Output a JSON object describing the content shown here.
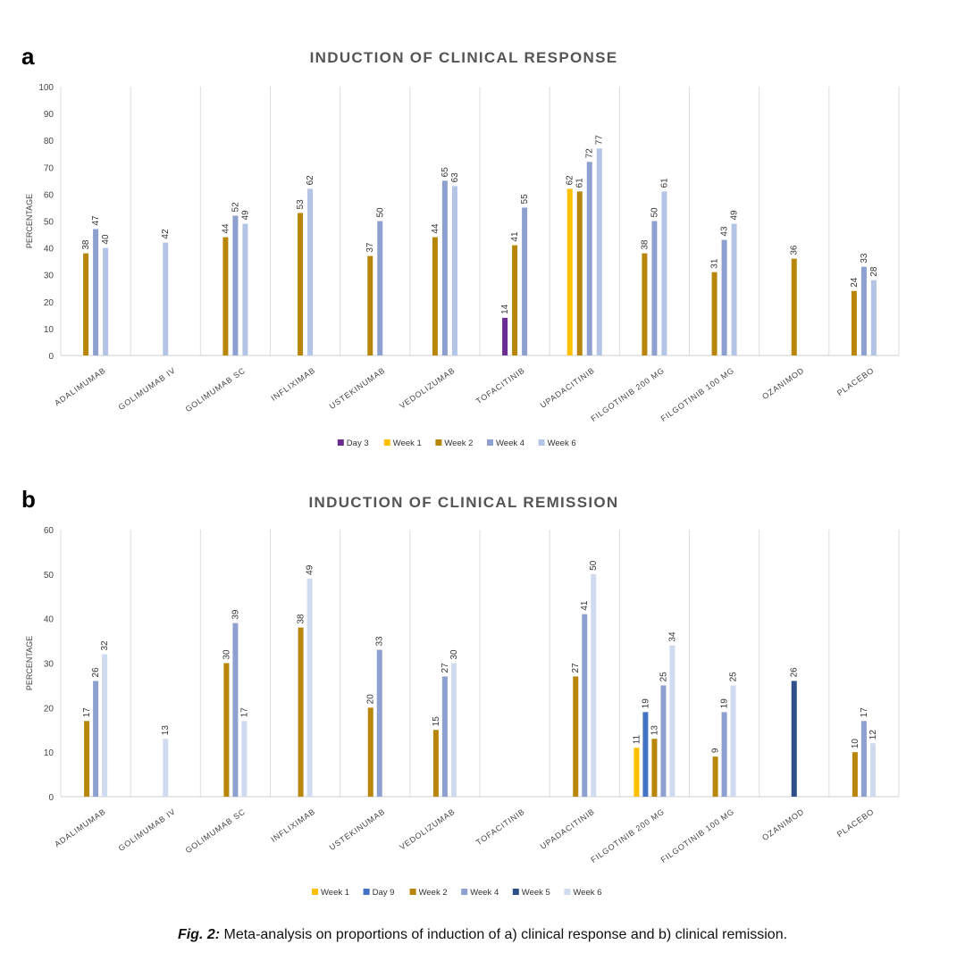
{
  "panel_letters": {
    "a": "a",
    "b": "b"
  },
  "caption": {
    "fig_label": "Fig. 2:",
    "text": " Meta-analysis on proportions of induction of a) clinical response and b) clinical remission."
  },
  "chart_data": [
    {
      "type": "bar",
      "title": "INDUCTION OF CLINICAL RESPONSE",
      "xlabel": "",
      "ylabel": "PERCENTAGE",
      "ylim": [
        0,
        100
      ],
      "yticks": [
        0,
        10,
        20,
        30,
        40,
        50,
        60,
        70,
        80,
        90,
        100
      ],
      "grid": "vertical category separators",
      "legend_position": "bottom",
      "categories": [
        "ADALIMUMAB",
        "GOLIMUMAB IV",
        "GOLIMUMAB SC",
        "INFLIXIMAB",
        "USTEKINUMAB",
        "VEDOLIZUMAB",
        "TOFACITINIB",
        "UPADACITINIB",
        "FILGOTINIB 200 MG",
        "FILGOTINIB 100 MG",
        "OZANIMOD",
        "PLACEBO"
      ],
      "series": [
        {
          "name": "Day 3",
          "color": "#6a2c91",
          "values": [
            null,
            null,
            null,
            null,
            null,
            null,
            14,
            null,
            null,
            null,
            null,
            null
          ]
        },
        {
          "name": "Week 1",
          "color": "#ffc000",
          "values": [
            null,
            null,
            null,
            null,
            null,
            null,
            null,
            62,
            null,
            null,
            null,
            null
          ]
        },
        {
          "name": "Week 2",
          "color": "#b8860b",
          "values": [
            38,
            null,
            44,
            53,
            37,
            44,
            41,
            61,
            38,
            31,
            36,
            24
          ]
        },
        {
          "name": "Week 4",
          "color": "#8ea0cf",
          "values": [
            47,
            null,
            52,
            null,
            50,
            65,
            55,
            72,
            50,
            43,
            null,
            33
          ]
        },
        {
          "name": "Week 6",
          "color": "#b4c4e6",
          "values": [
            40,
            42,
            49,
            62,
            null,
            63,
            null,
            77,
            61,
            49,
            null,
            28
          ]
        }
      ]
    },
    {
      "type": "bar",
      "title": "INDUCTION OF CLINICAL REMISSION",
      "xlabel": "",
      "ylabel": "PERCENTAGE",
      "ylim": [
        0,
        60
      ],
      "yticks": [
        0,
        10,
        20,
        30,
        40,
        50,
        60
      ],
      "grid": "vertical category separators",
      "legend_position": "bottom",
      "categories": [
        "ADALIMUMAB",
        "GOLIMUMAB IV",
        "GOLIMUMAB SC",
        "INFLIXIMAB",
        "USTEKINUMAB",
        "VEDOLIZUMAB",
        "TOFACITINIB",
        "UPADACITINIB",
        "FILGOTINIB 200 MG",
        "FILGOTINIB 100 MG",
        "OZANIMOD",
        "PLACEBO"
      ],
      "series": [
        {
          "name": "Week 1",
          "color": "#ffc000",
          "values": [
            null,
            null,
            null,
            null,
            null,
            null,
            null,
            null,
            11,
            null,
            null,
            null
          ]
        },
        {
          "name": "Day 9",
          "color": "#4472c4",
          "values": [
            null,
            null,
            null,
            null,
            null,
            null,
            null,
            null,
            19,
            null,
            null,
            null
          ]
        },
        {
          "name": "Week 2",
          "color": "#b8860b",
          "values": [
            17,
            null,
            30,
            38,
            20,
            15,
            null,
            27,
            13,
            9,
            null,
            10
          ]
        },
        {
          "name": "Week 4",
          "color": "#8ea0cf",
          "values": [
            26,
            null,
            39,
            null,
            33,
            27,
            null,
            41,
            25,
            19,
            null,
            17
          ]
        },
        {
          "name": "Week 5",
          "color": "#2f4f8a",
          "values": [
            null,
            null,
            null,
            null,
            null,
            null,
            null,
            null,
            null,
            null,
            26,
            null
          ]
        },
        {
          "name": "Week 6",
          "color": "#d0dbf0",
          "values": [
            32,
            13,
            17,
            49,
            null,
            30,
            null,
            50,
            34,
            25,
            null,
            12
          ]
        }
      ]
    }
  ]
}
